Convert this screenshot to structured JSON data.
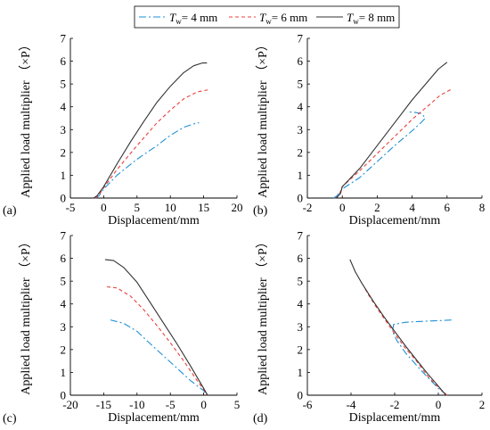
{
  "legend": {
    "entries": [
      {
        "sym": "T",
        "sub": "w",
        "rest": "= 4 mm",
        "color": "#1e90d6",
        "dash": "dashdot"
      },
      {
        "sym": "T",
        "sub": "w",
        "rest": "= 6 mm",
        "color": "#e8413b",
        "dash": "dash"
      },
      {
        "sym": "T",
        "sub": "w",
        "rest": "= 8 mm",
        "color": "#333333",
        "dash": "solid"
      }
    ]
  },
  "chart_data": [
    {
      "type": "line",
      "panel_label": "(a)",
      "xlabel": "Displacement/mm",
      "ylabel": "Applied load multiplier （×P）",
      "xlim": [
        -5,
        20
      ],
      "ylim": [
        0,
        7
      ],
      "xticks": [
        -5,
        0,
        5,
        10,
        15,
        20
      ],
      "yticks": [
        0,
        1,
        2,
        3,
        4,
        5,
        6,
        7
      ],
      "series": [
        {
          "name": "Tw = 4 mm",
          "points": [
            [
              -1.2,
              0
            ],
            [
              -0.7,
              0.1
            ],
            [
              0,
              0.4
            ],
            [
              2,
              1.0
            ],
            [
              5,
              1.7
            ],
            [
              8,
              2.3
            ],
            [
              10,
              2.75
            ],
            [
              12,
              3.1
            ],
            [
              13.5,
              3.25
            ],
            [
              14.3,
              3.3
            ]
          ]
        },
        {
          "name": "Tw = 6 mm",
          "points": [
            [
              -1.3,
              0
            ],
            [
              -0.8,
              0.1
            ],
            [
              0,
              0.45
            ],
            [
              2,
              1.25
            ],
            [
              5,
              2.3
            ],
            [
              8,
              3.3
            ],
            [
              10,
              3.85
            ],
            [
              12,
              4.35
            ],
            [
              14,
              4.65
            ],
            [
              15.8,
              4.75
            ]
          ]
        },
        {
          "name": "Tw = 8 mm",
          "points": [
            [
              -1.5,
              0
            ],
            [
              -1,
              0.1
            ],
            [
              0,
              0.5
            ],
            [
              2,
              1.5
            ],
            [
              4,
              2.45
            ],
            [
              6,
              3.35
            ],
            [
              8,
              4.2
            ],
            [
              10,
              4.9
            ],
            [
              12,
              5.5
            ],
            [
              13.5,
              5.8
            ],
            [
              14.8,
              5.92
            ],
            [
              15.5,
              5.92
            ]
          ]
        }
      ]
    },
    {
      "type": "line",
      "panel_label": "(b)",
      "xlabel": "Displacement/mm",
      "ylabel": "Applied load multiplier （×P）",
      "xlim": [
        -2,
        8
      ],
      "ylim": [
        0,
        7
      ],
      "xticks": [
        -2,
        0,
        2,
        4,
        6,
        8
      ],
      "yticks": [
        0,
        1,
        2,
        3,
        4,
        5,
        6,
        7
      ],
      "series": [
        {
          "name": "Tw = 4 mm",
          "points": [
            [
              -0.5,
              0
            ],
            [
              -0.3,
              0.1
            ],
            [
              0,
              0.4
            ],
            [
              1,
              0.9
            ],
            [
              2,
              1.6
            ],
            [
              3,
              2.3
            ],
            [
              4,
              2.95
            ],
            [
              4.5,
              3.3
            ],
            [
              4.75,
              3.5
            ],
            [
              4.55,
              3.7
            ],
            [
              4.2,
              3.75
            ],
            [
              3.7,
              3.78
            ]
          ]
        },
        {
          "name": "Tw = 6 mm",
          "points": [
            [
              -0.4,
              0
            ],
            [
              -0.2,
              0.1
            ],
            [
              0,
              0.5
            ],
            [
              1,
              1.2
            ],
            [
              2,
              1.95
            ],
            [
              3,
              2.7
            ],
            [
              4,
              3.45
            ],
            [
              5,
              4.1
            ],
            [
              5.6,
              4.5
            ],
            [
              6.2,
              4.75
            ]
          ]
        },
        {
          "name": "Tw = 8 mm",
          "points": [
            [
              -0.35,
              0
            ],
            [
              -0.1,
              0.2
            ],
            [
              0,
              0.5
            ],
            [
              1,
              1.3
            ],
            [
              2,
              2.3
            ],
            [
              3,
              3.3
            ],
            [
              4,
              4.3
            ],
            [
              5,
              5.2
            ],
            [
              5.5,
              5.65
            ],
            [
              6,
              5.95
            ]
          ]
        }
      ]
    },
    {
      "type": "line",
      "panel_label": "(c)",
      "xlabel": "Displacement/mm",
      "ylabel": "Applied load multiplier （×P）",
      "xlim": [
        -20,
        5
      ],
      "ylim": [
        0,
        7
      ],
      "xticks": [
        -20,
        -15,
        -10,
        -5,
        0,
        5
      ],
      "yticks": [
        0,
        1,
        2,
        3,
        4,
        5,
        6,
        7
      ],
      "series": [
        {
          "name": "Tw = 4 mm",
          "points": [
            [
              -14,
              3.3
            ],
            [
              -12,
              3.15
            ],
            [
              -10,
              2.8
            ],
            [
              -8,
              2.25
            ],
            [
              -5,
              1.45
            ],
            [
              -2,
              0.65
            ],
            [
              0,
              0.2
            ],
            [
              0.5,
              0
            ]
          ]
        },
        {
          "name": "Tw = 6 mm",
          "points": [
            [
              -14.5,
              4.75
            ],
            [
              -13,
              4.7
            ],
            [
              -11,
              4.35
            ],
            [
              -9,
              3.75
            ],
            [
              -7,
              3.05
            ],
            [
              -5,
              2.3
            ],
            [
              -3,
              1.5
            ],
            [
              -1,
              0.65
            ],
            [
              0,
              0.25
            ],
            [
              0.5,
              0
            ]
          ]
        },
        {
          "name": "Tw = 8 mm",
          "points": [
            [
              -14.8,
              5.95
            ],
            [
              -13.5,
              5.9
            ],
            [
              -12,
              5.6
            ],
            [
              -10,
              4.95
            ],
            [
              -8,
              4.05
            ],
            [
              -6,
              3.15
            ],
            [
              -4,
              2.25
            ],
            [
              -2,
              1.3
            ],
            [
              0,
              0.3
            ],
            [
              0.6,
              0
            ]
          ]
        }
      ]
    },
    {
      "type": "line",
      "panel_label": "(d)",
      "xlabel": "Displacement/mm",
      "ylabel": "Applied load multiplier （×P）",
      "xlim": [
        -6,
        2
      ],
      "ylim": [
        0,
        7
      ],
      "xticks": [
        -6,
        -4,
        -2,
        0,
        2
      ],
      "yticks": [
        0,
        1,
        2,
        3,
        4,
        5,
        6,
        7
      ],
      "series": [
        {
          "name": "Tw = 4 mm",
          "points": [
            [
              0.4,
              0
            ],
            [
              0,
              0.3
            ],
            [
              -0.8,
              1.1
            ],
            [
              -1.5,
              1.85
            ],
            [
              -1.9,
              2.4
            ],
            [
              -2.1,
              2.8
            ],
            [
              -2.05,
              3.1
            ],
            [
              -1.5,
              3.2
            ],
            [
              -0.5,
              3.25
            ],
            [
              0.3,
              3.28
            ],
            [
              0.7,
              3.3
            ]
          ]
        },
        {
          "name": "Tw = 6 mm",
          "points": [
            [
              0.4,
              0
            ],
            [
              0,
              0.35
            ],
            [
              -0.5,
              0.85
            ],
            [
              -1,
              1.5
            ],
            [
              -1.5,
              2.05
            ],
            [
              -2,
              2.7
            ],
            [
              -2.4,
              3.25
            ],
            [
              -2.8,
              3.8
            ],
            [
              -3.2,
              4.4
            ],
            [
              -3.4,
              4.75
            ]
          ]
        },
        {
          "name": "Tw = 8 mm",
          "points": [
            [
              0.35,
              0
            ],
            [
              0,
              0.4
            ],
            [
              -0.5,
              0.95
            ],
            [
              -1,
              1.55
            ],
            [
              -1.5,
              2.15
            ],
            [
              -2,
              2.8
            ],
            [
              -2.5,
              3.45
            ],
            [
              -3,
              4.15
            ],
            [
              -3.5,
              4.9
            ],
            [
              -3.8,
              5.4
            ],
            [
              -4.05,
              5.95
            ]
          ]
        }
      ]
    }
  ]
}
